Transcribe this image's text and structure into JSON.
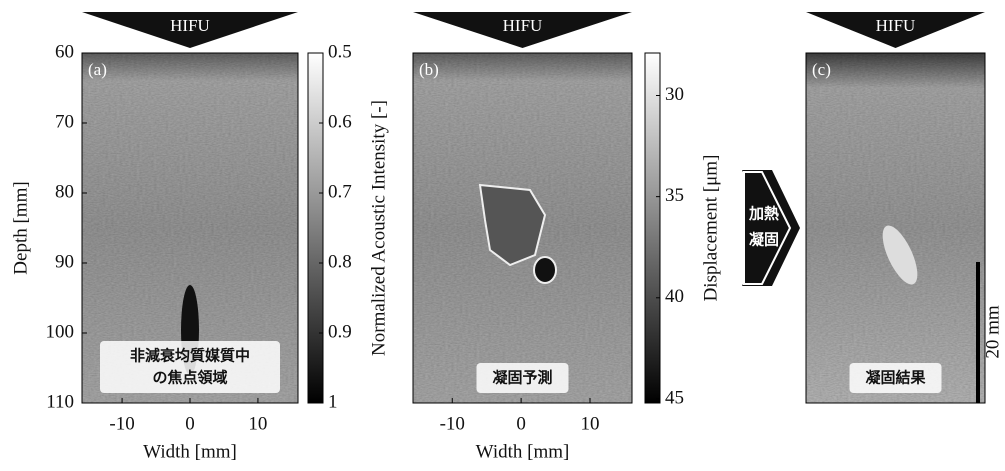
{
  "panels": [
    {
      "label": "(a)",
      "hifu": "HIFU",
      "caption": [
        "非減衰均質媒質中",
        "の焦点領域"
      ],
      "xlabel": "Width [mm]",
      "xlim": [
        -15.9,
        15.9
      ],
      "xticks": [
        -10,
        0,
        10
      ],
      "ylabel": "Depth [mm]",
      "ylim": [
        60,
        110
      ],
      "yticks": [
        60,
        70,
        80,
        90,
        100,
        110
      ],
      "colorbar": {
        "label": "Normalized Acoustic Intensity [-]",
        "lim": [
          0.5,
          1
        ],
        "ticks": [
          0.5,
          0.6,
          0.7,
          0.8,
          0.9,
          1
        ]
      }
    },
    {
      "label": "(b)",
      "hifu": "HIFU",
      "caption": [
        "凝固予測"
      ],
      "xlabel": "Width [mm]",
      "xlim": [
        -15.7,
        16.1
      ],
      "xticks": [
        -10,
        0,
        10
      ],
      "colorbar": {
        "label": "Displacement [μm]",
        "lim": [
          27.9,
          45.2
        ],
        "ticks": [
          30,
          35,
          40,
          45
        ]
      }
    },
    {
      "label": "(c)",
      "hifu": "HIFU",
      "caption": [
        "凝固結果"
      ],
      "scale_bar": "20 mm"
    }
  ],
  "arrow_label": [
    "加熱",
    "凝固"
  ]
}
